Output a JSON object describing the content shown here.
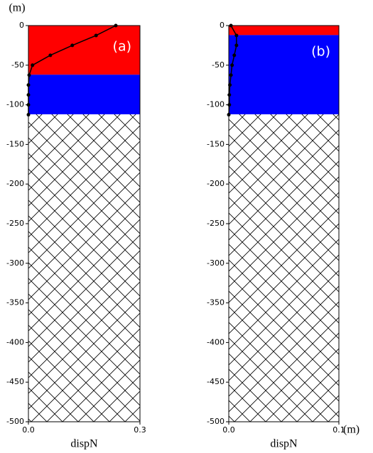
{
  "chart_data": [
    {
      "type": "line",
      "annotation": "(a)",
      "xlabel": "dispN",
      "ylabel": "(m)",
      "xlim": [
        0,
        0.3
      ],
      "xticks": [
        {
          "value": 0,
          "label": "0.0"
        },
        {
          "value": 0.3,
          "label": "0.3"
        }
      ],
      "ylim": [
        -500,
        0
      ],
      "yticks": [
        0,
        -50,
        -100,
        -150,
        -200,
        -250,
        -300,
        -350,
        -400,
        -450,
        -500
      ],
      "layers": [
        {
          "top": 0,
          "bottom": -62,
          "color": "#ff0000"
        },
        {
          "top": -62,
          "bottom": -112,
          "color": "#0000ff"
        },
        {
          "top": -112,
          "bottom": -500,
          "fill": "hatch"
        }
      ],
      "series": [
        {
          "color": "#000000",
          "x": [
            0.235,
            0.182,
            0.118,
            0.059,
            0.011,
            0.002,
            0,
            0,
            0,
            0
          ],
          "y": [
            0,
            -12.5,
            -25,
            -37.5,
            -50,
            -62.5,
            -75,
            -87.5,
            -100,
            -112.5
          ]
        }
      ]
    },
    {
      "type": "line",
      "annotation": "(b)",
      "xlabel": "dispN",
      "xunit": "(m)",
      "xlim": [
        0,
        0.1
      ],
      "xticks": [
        {
          "value": 0,
          "label": "0.0"
        },
        {
          "value": 0.1,
          "label": "0.1"
        }
      ],
      "ylim": [
        -500,
        0
      ],
      "yticks": [
        0,
        -50,
        -100,
        -150,
        -200,
        -250,
        -300,
        -350,
        -400,
        -450,
        -500
      ],
      "layers": [
        {
          "top": 0,
          "bottom": -12,
          "color": "#ff0000"
        },
        {
          "top": -12,
          "bottom": -112,
          "color": "#0000ff"
        },
        {
          "top": -112,
          "bottom": -500,
          "fill": "hatch"
        }
      ],
      "series": [
        {
          "color": "#000000",
          "x": [
            0.002,
            0.007,
            0.007,
            0.005,
            0.003,
            0.002,
            0.001,
            0.0005,
            0.0005,
            0
          ],
          "y": [
            0,
            -12.5,
            -25,
            -37.5,
            -50,
            -62.5,
            -75,
            -87.5,
            -100,
            -112.5
          ]
        }
      ]
    }
  ]
}
